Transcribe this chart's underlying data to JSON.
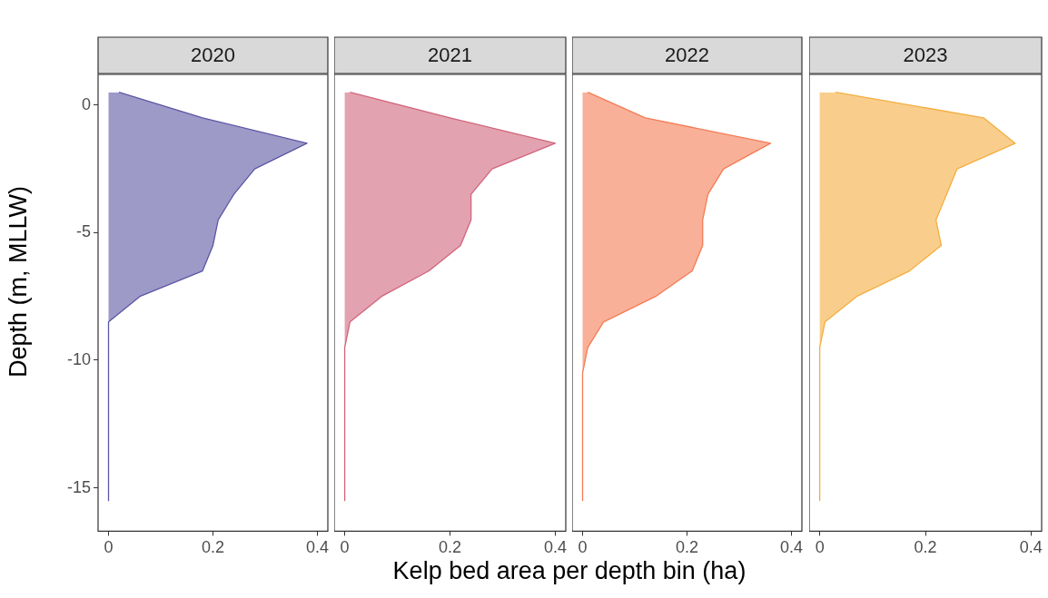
{
  "chart_data": [
    {
      "type": "area",
      "title": "2020",
      "orientation": "horizontal",
      "xlabel": "Kelp bed area per depth bin (ha)",
      "ylabel": "Depth (m, MLLW)",
      "color": "#5c56a3",
      "x": [
        0.5,
        -0.5,
        -1.5,
        -2.5,
        -3.5,
        -4.5,
        -5.5,
        -6.5,
        -7.5,
        -8.5,
        -9.5,
        -10.5,
        -11.5,
        -12.5,
        -13.5,
        -14.5,
        -15.5
      ],
      "values": [
        0.02,
        0.18,
        0.38,
        0.28,
        0.24,
        0.21,
        0.2,
        0.18,
        0.06,
        0,
        0,
        0,
        0,
        0,
        0,
        0,
        0
      ],
      "xlim": [
        -0.02,
        0.42
      ],
      "xticks": [
        0,
        0.2,
        0.4
      ],
      "ylim": [
        -16.7,
        1.2
      ],
      "yticks": [
        0,
        -5,
        -10,
        -15
      ]
    },
    {
      "type": "area",
      "title": "2021",
      "orientation": "horizontal",
      "color": "#d1647c",
      "x": [
        0.5,
        -0.5,
        -1.5,
        -2.5,
        -3.5,
        -4.5,
        -5.5,
        -6.5,
        -7.5,
        -8.5,
        -9.5,
        -10.5,
        -11.5,
        -12.5,
        -13.5,
        -14.5,
        -15.5
      ],
      "values": [
        0.01,
        0.2,
        0.4,
        0.28,
        0.24,
        0.24,
        0.22,
        0.16,
        0.07,
        0.01,
        0,
        0,
        0,
        0,
        0,
        0,
        0
      ],
      "xlim": [
        -0.02,
        0.42
      ],
      "xticks": [
        0,
        0.2,
        0.4
      ],
      "ylim": [
        -16.7,
        1.2
      ],
      "yticks": [
        0,
        -5,
        -10,
        -15
      ],
      "tick_labels": "x"
    },
    {
      "type": "area",
      "title": "2022",
      "orientation": "horizontal",
      "color": "#f47c54",
      "x": [
        0.5,
        -0.5,
        -1.5,
        -2.5,
        -3.5,
        -4.5,
        -5.5,
        -6.5,
        -7.5,
        -8.5,
        -9.5,
        -10.5,
        -11.5,
        -12.5,
        -13.5,
        -14.5,
        -15.5
      ],
      "values": [
        0.01,
        0.12,
        0.36,
        0.27,
        0.24,
        0.23,
        0.23,
        0.21,
        0.14,
        0.04,
        0.01,
        0,
        0,
        0,
        0,
        0,
        0
      ],
      "xlim": [
        -0.02,
        0.42
      ],
      "xticks": [
        0,
        0.2,
        0.4
      ],
      "ylim": [
        -16.7,
        1.2
      ],
      "yticks": [
        0,
        -5,
        -10,
        -15
      ],
      "tick_labels": "x"
    },
    {
      "type": "area",
      "title": "2023",
      "orientation": "horizontal",
      "color": "#f5ad3f",
      "x": [
        0.5,
        -0.5,
        -1.5,
        -2.5,
        -3.5,
        -4.5,
        -5.5,
        -6.5,
        -7.5,
        -8.5,
        -9.5,
        -10.5,
        -11.5,
        -12.5,
        -13.5,
        -14.5,
        -15.5
      ],
      "values": [
        0.03,
        0.31,
        0.37,
        0.26,
        0.24,
        0.22,
        0.23,
        0.17,
        0.07,
        0.01,
        0,
        0,
        0,
        0,
        0,
        0,
        0
      ],
      "xlim": [
        -0.02,
        0.42
      ],
      "xticks": [
        0,
        0.2,
        0.4
      ],
      "ylim": [
        -16.7,
        1.2
      ],
      "yticks": [
        0,
        -5,
        -10,
        -15
      ],
      "tick_labels": "x"
    }
  ]
}
